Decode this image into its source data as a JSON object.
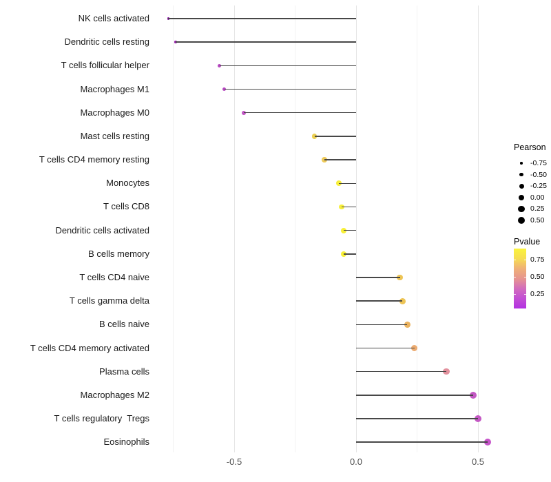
{
  "chart_data": {
    "type": "lollipop",
    "orientation": "horizontal",
    "title": "",
    "xlabel": "",
    "ylabel": "",
    "xlim": [
      -0.85,
      0.62
    ],
    "x_tick_values": [
      -0.5,
      0.0,
      0.5
    ],
    "x_tick_labels": [
      "-0.5",
      "0.0",
      "0.5"
    ],
    "x_gridlines_major": [
      -0.5,
      0.0,
      0.5
    ],
    "x_gridlines_minor": [
      -0.75,
      -0.25,
      0.25
    ],
    "grid_on": true,
    "legend_position": "right",
    "size_encoding": "Pearson",
    "color_encoding": "Pvalue",
    "rows": [
      {
        "label": "NK cells activated",
        "pearson": -0.77,
        "pvalue": 0.05,
        "color": "#8c15a9"
      },
      {
        "label": "Dendritic cells resting",
        "pearson": -0.74,
        "pvalue": 0.07,
        "color": "#9a1fae"
      },
      {
        "label": "T cells follicular helper",
        "pearson": -0.56,
        "pvalue": 0.15,
        "color": "#b648c0"
      },
      {
        "label": "Macrophages M1",
        "pearson": -0.54,
        "pvalue": 0.15,
        "color": "#b648c0"
      },
      {
        "label": "Macrophages M0",
        "pearson": -0.46,
        "pvalue": 0.18,
        "color": "#c257c4"
      },
      {
        "label": "Mast cells resting",
        "pearson": -0.17,
        "pvalue": 0.73,
        "color": "#ecd052"
      },
      {
        "label": "T cells CD4 memory resting",
        "pearson": -0.13,
        "pvalue": 0.7,
        "color": "#eeca5a"
      },
      {
        "label": "Monocytes",
        "pearson": -0.07,
        "pvalue": 0.88,
        "color": "#f6ee3b"
      },
      {
        "label": "T cells CD8",
        "pearson": -0.06,
        "pvalue": 0.88,
        "color": "#f6ee3b"
      },
      {
        "label": "Dendritic cells activated",
        "pearson": -0.05,
        "pvalue": 0.9,
        "color": "#f8f038"
      },
      {
        "label": "B cells memory",
        "pearson": -0.05,
        "pvalue": 0.9,
        "color": "#f8f038"
      },
      {
        "label": "T cells CD4 naive",
        "pearson": 0.18,
        "pvalue": 0.7,
        "color": "#edc455"
      },
      {
        "label": "T cells gamma delta",
        "pearson": 0.19,
        "pvalue": 0.7,
        "color": "#edc455"
      },
      {
        "label": "B cells naive",
        "pearson": 0.21,
        "pvalue": 0.62,
        "color": "#ebb35f"
      },
      {
        "label": "T cells CD4 memory activated",
        "pearson": 0.24,
        "pvalue": 0.55,
        "color": "#ecab70"
      },
      {
        "label": "Plasma cells",
        "pearson": 0.37,
        "pvalue": 0.42,
        "color": "#e2919d"
      },
      {
        "label": "Macrophages M2",
        "pearson": 0.48,
        "pvalue": 0.2,
        "color": "#c458c4"
      },
      {
        "label": "T cells regulatory  Tregs",
        "pearson": 0.5,
        "pvalue": 0.2,
        "color": "#c458c4"
      },
      {
        "label": "Eosinophils",
        "pearson": 0.54,
        "pvalue": 0.18,
        "color": "#c653c9"
      }
    ]
  },
  "legend": {
    "pearson": {
      "title": "Pearson",
      "dot_color": "#000000",
      "entries": [
        {
          "label": "-0.75",
          "radius": 1.7
        },
        {
          "label": "-0.50",
          "radius": 2.8
        },
        {
          "label": "-0.25",
          "radius": 3.5
        },
        {
          "label": "0.00",
          "radius": 4.2
        },
        {
          "label": "0.25",
          "radius": 4.6
        },
        {
          "label": "0.50",
          "radius": 5.0
        }
      ]
    },
    "pvalue": {
      "title": "Pvalue",
      "tick_labels": [
        "0.75",
        "0.50",
        "0.25"
      ],
      "gradient_top_to_bottom": [
        "#faf33c",
        "#f6dd52",
        "#efb077",
        "#e7958f",
        "#d26cbd",
        "#c24ed4",
        "#b331e1"
      ]
    }
  },
  "colors": {
    "stem": "#474747",
    "grid_major": "#e5e5e5",
    "grid_minor": "#f2f2f2",
    "axis_text": "#4d4d4d",
    "label_text": "#1a1a1a",
    "background": "#ffffff"
  }
}
